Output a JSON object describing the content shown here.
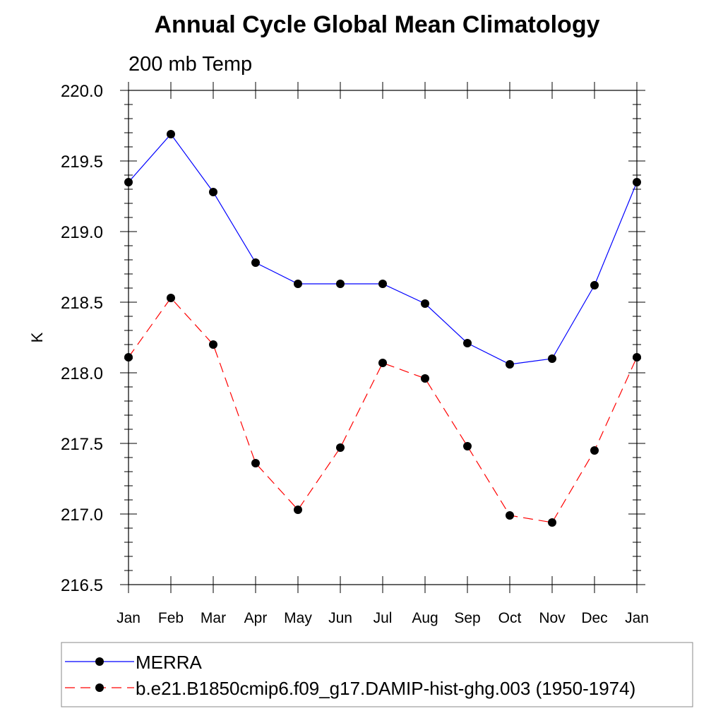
{
  "chart_data": {
    "type": "line",
    "title": "Annual Cycle Global Mean Climatology",
    "subtitle": "200 mb Temp",
    "xlabel": "",
    "ylabel": "K",
    "categories": [
      "Jan",
      "Feb",
      "Mar",
      "Apr",
      "May",
      "Jun",
      "Jul",
      "Aug",
      "Sep",
      "Oct",
      "Nov",
      "Dec",
      "Jan"
    ],
    "ylim": [
      216.5,
      220.0
    ],
    "yticks": [
      "216.5",
      "217.0",
      "217.5",
      "218.0",
      "218.5",
      "219.0",
      "219.5",
      "220.0"
    ],
    "grid": false,
    "legend_position": "bottom",
    "series": [
      {
        "name": "MERRA",
        "color": "#0000ff",
        "dash": "solid",
        "marker": "filled-circle",
        "values": [
          219.35,
          219.69,
          219.28,
          218.78,
          218.63,
          218.63,
          218.63,
          218.49,
          218.21,
          218.06,
          218.1,
          218.62,
          219.35
        ]
      },
      {
        "name": "b.e21.B1850cmip6.f09_g17.DAMIP-hist-ghg.003 (1950-1974)",
        "color": "#ff0000",
        "dash": "dashed",
        "marker": "filled-circle",
        "values": [
          218.11,
          218.53,
          218.2,
          217.36,
          217.03,
          217.47,
          218.07,
          217.96,
          217.48,
          216.99,
          216.94,
          217.45,
          218.11
        ]
      }
    ]
  }
}
